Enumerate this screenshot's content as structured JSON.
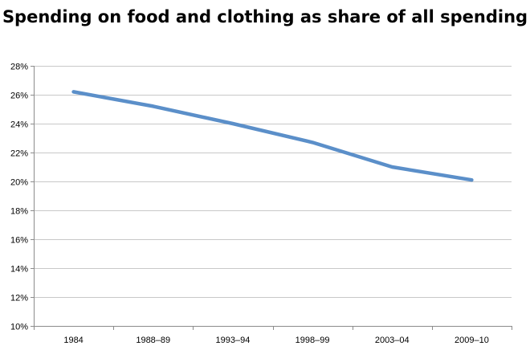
{
  "chart_data": {
    "type": "line",
    "title": "Spending on food and clothing as share of all spending",
    "xlabel": "",
    "ylabel": "",
    "categories": [
      "1984",
      "1988–89",
      "1993–94",
      "1998–99",
      "2003–04",
      "2009–10"
    ],
    "series": [
      {
        "values": [
          26.2,
          25.2,
          24.0,
          22.7,
          21.0,
          20.1
        ],
        "color": "#5b8fc9"
      }
    ],
    "ylim": [
      10,
      28
    ],
    "y_ticks": [
      "10%",
      "12%",
      "14%",
      "16%",
      "18%",
      "20%",
      "22%",
      "24%",
      "26%",
      "28%"
    ],
    "y_tick_values": [
      10,
      12,
      14,
      16,
      18,
      20,
      22,
      24,
      26,
      28
    ],
    "grid": true,
    "gridline_color": "#c8c8c8",
    "legend": "none"
  }
}
